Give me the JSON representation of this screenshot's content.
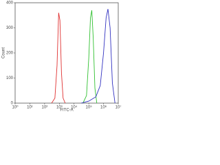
{
  "chart_data": {
    "type": "line",
    "x_label": "FITC-A",
    "y_label": "Count",
    "xscale": "log",
    "xlim": [
      1,
      10000000
    ],
    "xticks": [
      {
        "value": 1,
        "label": "10⁰"
      },
      {
        "value": 10,
        "label": "10¹"
      },
      {
        "value": 100,
        "label": "10²"
      },
      {
        "value": 1000,
        "label": "10³"
      },
      {
        "value": 10000,
        "label": "10⁴"
      },
      {
        "value": 100000,
        "label": "10⁵"
      },
      {
        "value": 1000000,
        "label": "10⁶"
      },
      {
        "value": 10000000,
        "label": "10⁷"
      }
    ],
    "ylim": [
      0,
      400
    ],
    "yticks": [
      0,
      100,
      200,
      300,
      400
    ],
    "series": [
      {
        "color": "#e03030",
        "x": [
          300,
          500,
          700,
          900,
          1100,
          1400,
          1800,
          2500
        ],
        "values": [
          0,
          20,
          150,
          360,
          330,
          120,
          20,
          0
        ]
      },
      {
        "color": "#30c030",
        "x": [
          40000,
          70000,
          100000,
          130000,
          160000,
          200000,
          260000,
          350000
        ],
        "values": [
          0,
          30,
          180,
          340,
          370,
          260,
          60,
          0
        ]
      },
      {
        "color": "#3030c0",
        "x": [
          30000,
          100000,
          300000,
          600000,
          1000000,
          1500000,
          2000000,
          2800000,
          4000000,
          6000000
        ],
        "values": [
          0,
          8,
          25,
          70,
          200,
          340,
          375,
          300,
          80,
          0
        ]
      }
    ]
  }
}
